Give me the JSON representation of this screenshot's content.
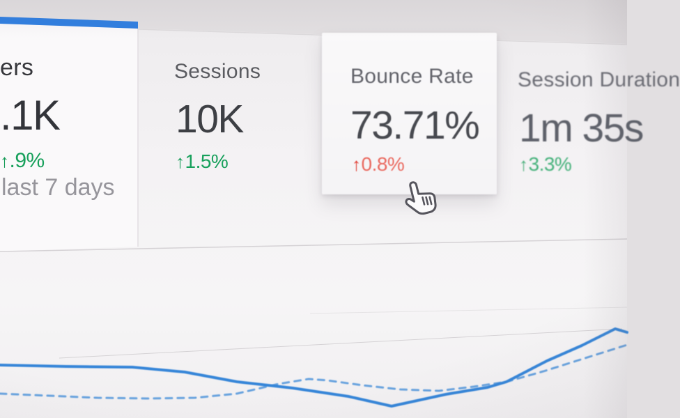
{
  "colors": {
    "accent_blue": "#2e7de0",
    "chart_line_solid": "#3585d8",
    "chart_line_dashed": "#5b9bdc",
    "positive_green": "#17a05b",
    "negative_red_arrow": "#e03a2f",
    "negative_red_text": "#ea6a60",
    "muted_text": "#96959b",
    "title_text": "#5a5b60",
    "value_text": "#3d3f44",
    "panel_white": "#f5f4f5",
    "backdrop_gray": "#e2dfe1"
  },
  "scorecards": [
    {
      "title": "ers",
      "value": ".1K",
      "change_arrow": "↑",
      "change_text": ".9%",
      "change_sentiment": "positive",
      "subtitle": "last 7 days",
      "active_tab_indicator": true
    },
    {
      "title": "Sessions",
      "value": "10K",
      "change_arrow": "↑",
      "change_text": "1.5%",
      "change_sentiment": "positive"
    },
    {
      "title": "Bounce Rate",
      "value": "73.71%",
      "change_arrow": "↑",
      "change_text": "0.8%",
      "change_sentiment": "negative",
      "hovered": true
    },
    {
      "title": "Session Duration",
      "value": "1m 35s",
      "change_arrow": "↑",
      "change_text": "3.3%",
      "change_sentiment": "positive"
    }
  ],
  "cursor": {
    "type": "hand-pointer"
  },
  "chart_data": {
    "type": "line",
    "title": "",
    "xlabel": "",
    "ylabel": "",
    "note": "trend chart below metric tabs; no axis tick labels visible in screenshot; points are approximate pixel coordinates (x,y) of the photographed lines, y increases downward",
    "grid": "single faint diagonal gridlines visible",
    "legend": "none visible",
    "series": [
      {
        "name": "solid",
        "style": "solid",
        "points": [
          [
            0,
            524
          ],
          [
            95,
            526
          ],
          [
            190,
            527
          ],
          [
            265,
            534
          ],
          [
            340,
            548
          ],
          [
            420,
            557
          ],
          [
            500,
            569
          ],
          [
            562,
            583
          ],
          [
            640,
            566
          ],
          [
            700,
            556
          ],
          [
            727,
            548
          ],
          [
            785,
            518
          ],
          [
            835,
            496
          ],
          [
            883,
            472
          ],
          [
            900,
            477
          ]
        ]
      },
      {
        "name": "dashed",
        "style": "dashed",
        "points": [
          [
            0,
            565
          ],
          [
            70,
            568
          ],
          [
            140,
            571
          ],
          [
            210,
            572
          ],
          [
            280,
            571
          ],
          [
            340,
            565
          ],
          [
            400,
            551
          ],
          [
            443,
            544
          ],
          [
            470,
            546
          ],
          [
            520,
            553
          ],
          [
            575,
            559
          ],
          [
            630,
            561
          ],
          [
            680,
            555
          ],
          [
            727,
            548
          ],
          [
            780,
            533
          ],
          [
            840,
            514
          ],
          [
            897,
            496
          ],
          [
            900,
            495
          ]
        ]
      }
    ]
  }
}
